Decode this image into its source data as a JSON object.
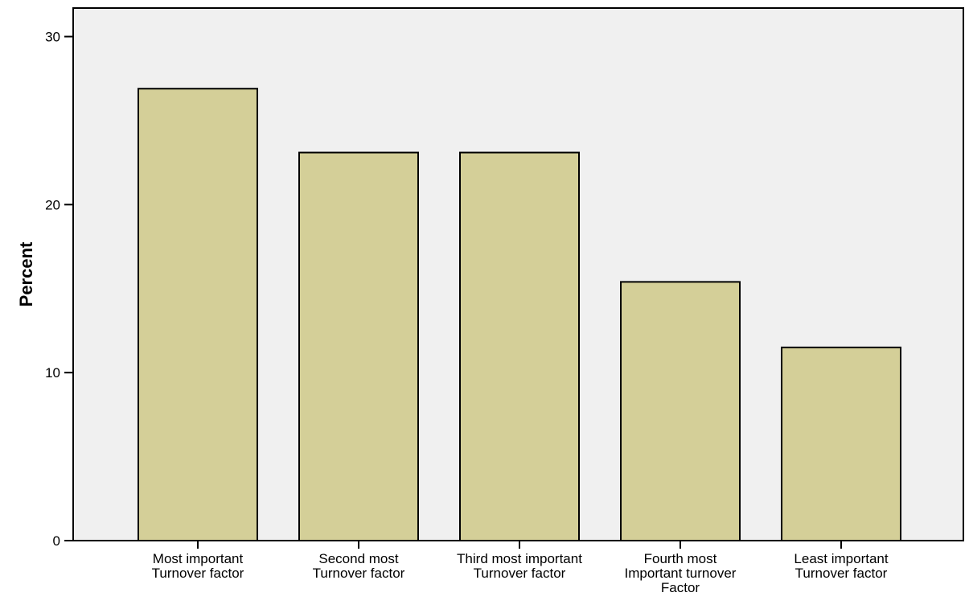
{
  "chart_data": {
    "type": "bar",
    "categories": [
      [
        "Most important",
        "Turnover factor"
      ],
      [
        "Second most",
        "Turnover factor"
      ],
      [
        "Third most important",
        "Turnover factor"
      ],
      [
        "Fourth most",
        "Important turnover",
        "Factor"
      ],
      [
        "Least important",
        "Turnover factor"
      ]
    ],
    "values": [
      26.9,
      23.1,
      23.1,
      15.4,
      11.5
    ],
    "title": "",
    "xlabel": "",
    "ylabel": "Percent",
    "ylim": [
      0,
      31.7
    ],
    "yticks": [
      0,
      10,
      20,
      30
    ],
    "grid": false,
    "legend": "none",
    "colors": {
      "bar_fill": "#d4cf98",
      "bar_stroke": "#000000",
      "plot_background": "#f0f0f0"
    }
  }
}
